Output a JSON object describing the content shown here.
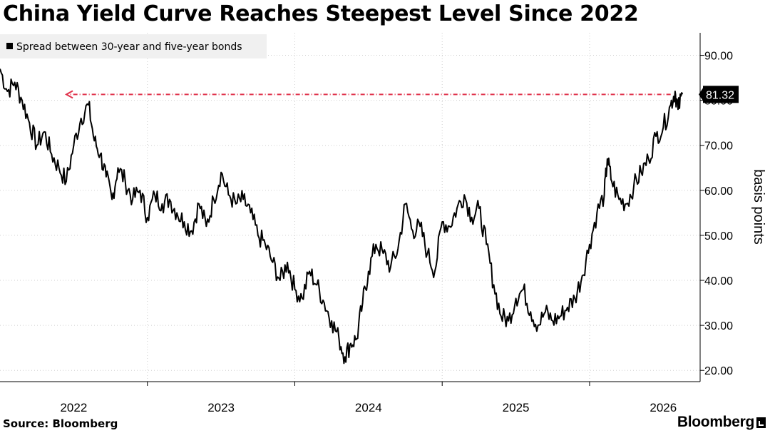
{
  "chart_data": {
    "type": "line",
    "title": "China Yield Curve Reaches Steepest Level Since 2022",
    "xlabel": "",
    "ylabel": "basis points",
    "ylim": [
      17.5,
      95
    ],
    "yticks": [
      20,
      30,
      40,
      50,
      60,
      70,
      80,
      90
    ],
    "ytick_labels": [
      "20.00",
      "30.00",
      "40.00",
      "50.00",
      "60.00",
      "70.00",
      "80.00",
      "90.00"
    ],
    "xlim": [
      2021.5,
      2026.25
    ],
    "x_tick_labels": [
      {
        "label": "2022",
        "at": 2022.0
      },
      {
        "label": "2023",
        "at": 2023.0
      },
      {
        "label": "2024",
        "at": 2024.0
      },
      {
        "label": "2025",
        "at": 2025.0
      },
      {
        "label": "2026",
        "at": 2026.0
      }
    ],
    "year_boundaries": [
      2022.5,
      2023.5,
      2024.5,
      2025.5
    ],
    "legend": {
      "label": "Spread between 30-year and five-year bonds",
      "placement": "top-left"
    },
    "series": [
      {
        "name": "Spread between 30-year and five-year bonds",
        "color": "#000000",
        "last_value_label": "81.32",
        "points": [
          [
            2021.5,
            87
          ],
          [
            2021.55,
            82
          ],
          [
            2021.6,
            84
          ],
          [
            2021.65,
            80
          ],
          [
            2021.7,
            75
          ],
          [
            2021.75,
            70
          ],
          [
            2021.8,
            73
          ],
          [
            2021.85,
            68
          ],
          [
            2021.9,
            65
          ],
          [
            2021.95,
            62
          ],
          [
            2022.0,
            70
          ],
          [
            2022.05,
            76
          ],
          [
            2022.1,
            79
          ],
          [
            2022.14,
            71
          ],
          [
            2022.18,
            68
          ],
          [
            2022.22,
            63
          ],
          [
            2022.26,
            58
          ],
          [
            2022.3,
            65
          ],
          [
            2022.35,
            62
          ],
          [
            2022.4,
            58
          ],
          [
            2022.45,
            60
          ],
          [
            2022.5,
            54
          ],
          [
            2022.55,
            59
          ],
          [
            2022.6,
            57
          ],
          [
            2022.65,
            58
          ],
          [
            2022.7,
            55
          ],
          [
            2022.75,
            53
          ],
          [
            2022.8,
            51
          ],
          [
            2022.85,
            57
          ],
          [
            2022.9,
            52
          ],
          [
            2022.95,
            58
          ],
          [
            2023.0,
            64
          ],
          [
            2023.05,
            59
          ],
          [
            2023.1,
            57
          ],
          [
            2023.15,
            58
          ],
          [
            2023.2,
            55
          ],
          [
            2023.25,
            50
          ],
          [
            2023.3,
            48
          ],
          [
            2023.35,
            44
          ],
          [
            2023.4,
            40
          ],
          [
            2023.45,
            44
          ],
          [
            2023.5,
            38
          ],
          [
            2023.55,
            36
          ],
          [
            2023.6,
            42
          ],
          [
            2023.65,
            39
          ],
          [
            2023.7,
            35
          ],
          [
            2023.75,
            31
          ],
          [
            2023.8,
            27
          ],
          [
            2023.84,
            23
          ],
          [
            2023.88,
            26
          ],
          [
            2023.92,
            27
          ],
          [
            2023.96,
            35
          ],
          [
            2024.0,
            42
          ],
          [
            2024.05,
            48
          ],
          [
            2024.1,
            46
          ],
          [
            2024.15,
            43
          ],
          [
            2024.2,
            47
          ],
          [
            2024.25,
            57
          ],
          [
            2024.3,
            51
          ],
          [
            2024.35,
            52
          ],
          [
            2024.4,
            46
          ],
          [
            2024.45,
            42
          ],
          [
            2024.5,
            53
          ],
          [
            2024.55,
            52
          ],
          [
            2024.6,
            56
          ],
          [
            2024.65,
            59
          ],
          [
            2024.7,
            54
          ],
          [
            2024.75,
            56
          ],
          [
            2024.8,
            48
          ],
          [
            2024.85,
            39
          ],
          [
            2024.9,
            32
          ],
          [
            2024.95,
            31
          ],
          [
            2025.0,
            36
          ],
          [
            2025.05,
            38
          ],
          [
            2025.1,
            33
          ],
          [
            2025.15,
            30
          ],
          [
            2025.2,
            33
          ],
          [
            2025.25,
            31
          ],
          [
            2025.3,
            32
          ],
          [
            2025.35,
            34
          ],
          [
            2025.4,
            36
          ],
          [
            2025.45,
            41
          ],
          [
            2025.5,
            48
          ],
          [
            2025.55,
            55
          ],
          [
            2025.6,
            59
          ],
          [
            2025.62,
            67
          ],
          [
            2025.65,
            62
          ],
          [
            2025.7,
            58
          ],
          [
            2025.75,
            57
          ],
          [
            2025.8,
            61
          ],
          [
            2025.85,
            64
          ],
          [
            2025.9,
            67
          ],
          [
            2025.95,
            72
          ],
          [
            2026.0,
            74
          ],
          [
            2026.05,
            79
          ],
          [
            2026.08,
            82
          ],
          [
            2026.1,
            78
          ],
          [
            2026.13,
            81.32
          ]
        ]
      }
    ],
    "annotation": {
      "type": "horizontal-arrow",
      "level": 81.32,
      "x_from": 2026.05,
      "x_to": 2021.95,
      "color": "#e0334c"
    }
  },
  "footer": {
    "source": "Source: Bloomberg",
    "brand": "Bloomberg"
  }
}
